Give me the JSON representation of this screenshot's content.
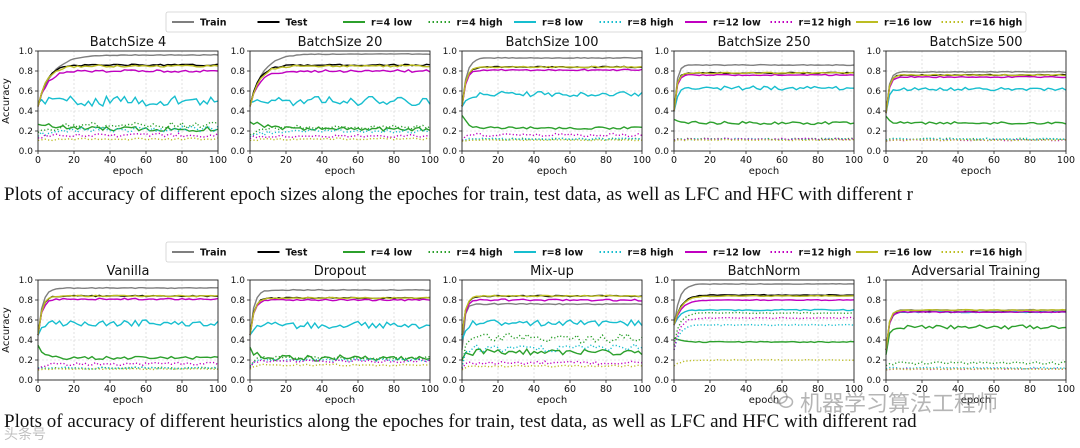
{
  "legend": [
    {
      "label": "Train",
      "color": "#7f7f7f",
      "style": "solid"
    },
    {
      "label": "Test",
      "color": "#000000",
      "style": "solid"
    },
    {
      "label": "r=4 low",
      "color": "#2ca02c",
      "style": "solid"
    },
    {
      "label": "r=4 high",
      "color": "#2ca02c",
      "style": "dotted"
    },
    {
      "label": "r=8 low",
      "color": "#17becf",
      "style": "solid"
    },
    {
      "label": "r=8 high",
      "color": "#17becf",
      "style": "dotted"
    },
    {
      "label": "r=12 low",
      "color": "#c000c0",
      "style": "solid"
    },
    {
      "label": "r=12 high",
      "color": "#c000c0",
      "style": "dotted"
    },
    {
      "label": "r=16 low",
      "color": "#bcbd22",
      "style": "solid"
    },
    {
      "label": "r=16 high",
      "color": "#bcbd22",
      "style": "dotted"
    }
  ],
  "axis": {
    "xlabel": "epoch",
    "ylabel": "Accuracy",
    "xticks": [
      0,
      20,
      40,
      60,
      80,
      100
    ],
    "yticks": [
      0.0,
      0.2,
      0.4,
      0.6,
      0.8,
      1.0
    ],
    "xlim": [
      0,
      100
    ],
    "ylim": [
      0,
      1
    ]
  },
  "captions": {
    "top": "Plots of accuracy of different epoch sizes along the epoches for train, test data, as well as LFC and HFC with different r",
    "bottom": "Plots of accuracy of different heuristics along the epoches for train, test data, as well as LFC and HFC with different rad"
  },
  "watermark": {
    "right": "机器学习算法工程师",
    "left": "头条号"
  },
  "chart_data": [
    {
      "type": "line",
      "title": "BatchSize 4",
      "grid": true,
      "series": [
        {
          "label_ref": "Train",
          "start": 0.45,
          "end": 0.96,
          "rate": 8,
          "noise": 0.004
        },
        {
          "label_ref": "Test",
          "start": 0.45,
          "end": 0.86,
          "rate": 5,
          "noise": 0.008
        },
        {
          "label_ref": "r=4 low",
          "start": 0.28,
          "end": 0.22,
          "rate": 10,
          "noise": 0.025
        },
        {
          "label_ref": "r=4 high",
          "start": 0.2,
          "end": 0.26,
          "rate": 10,
          "noise": 0.03
        },
        {
          "label_ref": "r=8 low",
          "start": 0.5,
          "end": 0.5,
          "rate": 5,
          "noise": 0.05
        },
        {
          "label_ref": "r=8 high",
          "start": 0.16,
          "end": 0.22,
          "rate": 10,
          "noise": 0.03
        },
        {
          "label_ref": "r=12 low",
          "start": 0.45,
          "end": 0.8,
          "rate": 5,
          "noise": 0.012
        },
        {
          "label_ref": "r=12 high",
          "start": 0.14,
          "end": 0.16,
          "rate": 10,
          "noise": 0.02
        },
        {
          "label_ref": "r=16 low",
          "start": 0.45,
          "end": 0.85,
          "rate": 5,
          "noise": 0.01
        },
        {
          "label_ref": "r=16 high",
          "start": 0.11,
          "end": 0.12,
          "rate": 10,
          "noise": 0.01
        }
      ]
    },
    {
      "type": "line",
      "title": "BatchSize 20",
      "grid": true,
      "series": [
        {
          "label_ref": "Train",
          "start": 0.45,
          "end": 0.97,
          "rate": 7,
          "noise": 0.004
        },
        {
          "label_ref": "Test",
          "start": 0.45,
          "end": 0.86,
          "rate": 5,
          "noise": 0.008
        },
        {
          "label_ref": "r=4 low",
          "start": 0.3,
          "end": 0.22,
          "rate": 10,
          "noise": 0.02
        },
        {
          "label_ref": "r=4 high",
          "start": 0.17,
          "end": 0.24,
          "rate": 10,
          "noise": 0.02
        },
        {
          "label_ref": "r=8 low",
          "start": 0.5,
          "end": 0.5,
          "rate": 5,
          "noise": 0.045
        },
        {
          "label_ref": "r=8 high",
          "start": 0.15,
          "end": 0.2,
          "rate": 10,
          "noise": 0.02
        },
        {
          "label_ref": "r=12 low",
          "start": 0.45,
          "end": 0.8,
          "rate": 5,
          "noise": 0.012
        },
        {
          "label_ref": "r=12 high",
          "start": 0.13,
          "end": 0.15,
          "rate": 10,
          "noise": 0.015
        },
        {
          "label_ref": "r=16 low",
          "start": 0.45,
          "end": 0.85,
          "rate": 5,
          "noise": 0.01
        },
        {
          "label_ref": "r=16 high",
          "start": 0.11,
          "end": 0.12,
          "rate": 10,
          "noise": 0.01
        }
      ]
    },
    {
      "type": "line",
      "title": "BatchSize 100",
      "grid": true,
      "series": [
        {
          "label_ref": "Train",
          "start": 0.45,
          "end": 0.93,
          "rate": 2.5,
          "noise": 0.004
        },
        {
          "label_ref": "Test",
          "start": 0.45,
          "end": 0.84,
          "rate": 2.2,
          "noise": 0.006
        },
        {
          "label_ref": "r=4 low",
          "start": 0.36,
          "end": 0.23,
          "rate": 3,
          "noise": 0.012
        },
        {
          "label_ref": "r=4 high",
          "start": 0.11,
          "end": 0.12,
          "rate": 3,
          "noise": 0.01
        },
        {
          "label_ref": "r=8 low",
          "start": 0.45,
          "end": 0.57,
          "rate": 2.5,
          "noise": 0.025
        },
        {
          "label_ref": "r=8 high",
          "start": 0.11,
          "end": 0.12,
          "rate": 3,
          "noise": 0.01
        },
        {
          "label_ref": "r=12 low",
          "start": 0.45,
          "end": 0.81,
          "rate": 2.2,
          "noise": 0.008
        },
        {
          "label_ref": "r=12 high",
          "start": 0.11,
          "end": 0.16,
          "rate": 2,
          "noise": 0.015
        },
        {
          "label_ref": "r=16 low",
          "start": 0.45,
          "end": 0.84,
          "rate": 2.2,
          "noise": 0.006
        },
        {
          "label_ref": "r=16 high",
          "start": 0.1,
          "end": 0.11,
          "rate": 3,
          "noise": 0.005
        }
      ]
    },
    {
      "type": "line",
      "title": "BatchSize 250",
      "grid": true,
      "series": [
        {
          "label_ref": "Train",
          "start": 0.4,
          "end": 0.86,
          "rate": 1.6,
          "noise": 0.004
        },
        {
          "label_ref": "Test",
          "start": 0.4,
          "end": 0.78,
          "rate": 1.5,
          "noise": 0.006
        },
        {
          "label_ref": "r=4 low",
          "start": 0.32,
          "end": 0.28,
          "rate": 2,
          "noise": 0.015
        },
        {
          "label_ref": "r=4 high",
          "start": 0.11,
          "end": 0.12,
          "rate": 2,
          "noise": 0.008
        },
        {
          "label_ref": "r=8 low",
          "start": 0.4,
          "end": 0.63,
          "rate": 1.6,
          "noise": 0.02
        },
        {
          "label_ref": "r=8 high",
          "start": 0.11,
          "end": 0.12,
          "rate": 2,
          "noise": 0.008
        },
        {
          "label_ref": "r=12 low",
          "start": 0.4,
          "end": 0.76,
          "rate": 1.5,
          "noise": 0.006
        },
        {
          "label_ref": "r=12 high",
          "start": 0.11,
          "end": 0.12,
          "rate": 2,
          "noise": 0.008
        },
        {
          "label_ref": "r=16 low",
          "start": 0.4,
          "end": 0.78,
          "rate": 1.5,
          "noise": 0.006
        },
        {
          "label_ref": "r=16 high",
          "start": 0.1,
          "end": 0.11,
          "rate": 2,
          "noise": 0.005
        }
      ]
    },
    {
      "type": "line",
      "title": "BatchSize 500",
      "grid": true,
      "series": [
        {
          "label_ref": "Train",
          "start": 0.38,
          "end": 0.79,
          "rate": 1.6,
          "noise": 0.004
        },
        {
          "label_ref": "Test",
          "start": 0.38,
          "end": 0.76,
          "rate": 1.6,
          "noise": 0.005
        },
        {
          "label_ref": "r=4 low",
          "start": 0.35,
          "end": 0.28,
          "rate": 2,
          "noise": 0.012
        },
        {
          "label_ref": "r=4 high",
          "start": 0.11,
          "end": 0.12,
          "rate": 2,
          "noise": 0.008
        },
        {
          "label_ref": "r=8 low",
          "start": 0.38,
          "end": 0.62,
          "rate": 1.6,
          "noise": 0.015
        },
        {
          "label_ref": "r=8 high",
          "start": 0.11,
          "end": 0.12,
          "rate": 2,
          "noise": 0.008
        },
        {
          "label_ref": "r=12 low",
          "start": 0.38,
          "end": 0.74,
          "rate": 1.6,
          "noise": 0.005
        },
        {
          "label_ref": "r=12 high",
          "start": 0.1,
          "end": 0.11,
          "rate": 2,
          "noise": 0.006
        },
        {
          "label_ref": "r=16 low",
          "start": 0.38,
          "end": 0.76,
          "rate": 1.6,
          "noise": 0.005
        },
        {
          "label_ref": "r=16 high",
          "start": 0.1,
          "end": 0.11,
          "rate": 2,
          "noise": 0.005
        }
      ]
    },
    {
      "type": "line",
      "title": "Vanilla",
      "grid": true,
      "series": [
        {
          "label_ref": "Train",
          "start": 0.45,
          "end": 0.92,
          "rate": 2.5,
          "noise": 0.004
        },
        {
          "label_ref": "Test",
          "start": 0.45,
          "end": 0.84,
          "rate": 2.2,
          "noise": 0.006
        },
        {
          "label_ref": "r=4 low",
          "start": 0.35,
          "end": 0.22,
          "rate": 3,
          "noise": 0.015
        },
        {
          "label_ref": "r=4 high",
          "start": 0.12,
          "end": 0.12,
          "rate": 3,
          "noise": 0.01
        },
        {
          "label_ref": "r=8 low",
          "start": 0.45,
          "end": 0.57,
          "rate": 2.5,
          "noise": 0.03
        },
        {
          "label_ref": "r=8 high",
          "start": 0.12,
          "end": 0.12,
          "rate": 3,
          "noise": 0.01
        },
        {
          "label_ref": "r=12 low",
          "start": 0.45,
          "end": 0.81,
          "rate": 2.2,
          "noise": 0.008
        },
        {
          "label_ref": "r=12 high",
          "start": 0.11,
          "end": 0.16,
          "rate": 2,
          "noise": 0.015
        },
        {
          "label_ref": "r=16 low",
          "start": 0.45,
          "end": 0.84,
          "rate": 2.2,
          "noise": 0.006
        },
        {
          "label_ref": "r=16 high",
          "start": 0.1,
          "end": 0.11,
          "rate": 3,
          "noise": 0.005
        }
      ]
    },
    {
      "type": "line",
      "title": "Dropout",
      "grid": true,
      "series": [
        {
          "label_ref": "Train",
          "start": 0.45,
          "end": 0.9,
          "rate": 2.2,
          "noise": 0.004
        },
        {
          "label_ref": "Test",
          "start": 0.45,
          "end": 0.82,
          "rate": 2.2,
          "noise": 0.006
        },
        {
          "label_ref": "r=4 low",
          "start": 0.33,
          "end": 0.22,
          "rate": 3,
          "noise": 0.03
        },
        {
          "label_ref": "r=4 high",
          "start": 0.14,
          "end": 0.22,
          "rate": 2,
          "noise": 0.015
        },
        {
          "label_ref": "r=8 low",
          "start": 0.45,
          "end": 0.55,
          "rate": 2.5,
          "noise": 0.035
        },
        {
          "label_ref": "r=8 high",
          "start": 0.13,
          "end": 0.2,
          "rate": 2,
          "noise": 0.015
        },
        {
          "label_ref": "r=12 low",
          "start": 0.45,
          "end": 0.8,
          "rate": 2.2,
          "noise": 0.008
        },
        {
          "label_ref": "r=12 high",
          "start": 0.12,
          "end": 0.19,
          "rate": 2,
          "noise": 0.015
        },
        {
          "label_ref": "r=16 low",
          "start": 0.45,
          "end": 0.82,
          "rate": 2.2,
          "noise": 0.006
        },
        {
          "label_ref": "r=16 high",
          "start": 0.11,
          "end": 0.15,
          "rate": 2,
          "noise": 0.01
        }
      ]
    },
    {
      "type": "line",
      "title": "Mix-up",
      "grid": true,
      "series": [
        {
          "label_ref": "Train",
          "start": 0.3,
          "end": 0.76,
          "rate": 1.3,
          "noise": 0.006
        },
        {
          "label_ref": "Test",
          "start": 0.45,
          "end": 0.84,
          "rate": 2,
          "noise": 0.006
        },
        {
          "label_ref": "r=4 low",
          "start": 0.2,
          "end": 0.28,
          "rate": 2,
          "noise": 0.03
        },
        {
          "label_ref": "r=4 high",
          "start": 0.12,
          "end": 0.42,
          "rate": 0.8,
          "noise": 0.05
        },
        {
          "label_ref": "r=8 low",
          "start": 0.4,
          "end": 0.57,
          "rate": 2,
          "noise": 0.03
        },
        {
          "label_ref": "r=8 high",
          "start": 0.12,
          "end": 0.32,
          "rate": 1,
          "noise": 0.04
        },
        {
          "label_ref": "r=12 low",
          "start": 0.45,
          "end": 0.8,
          "rate": 2,
          "noise": 0.01
        },
        {
          "label_ref": "r=12 high",
          "start": 0.11,
          "end": 0.17,
          "rate": 1.5,
          "noise": 0.02
        },
        {
          "label_ref": "r=16 low",
          "start": 0.45,
          "end": 0.84,
          "rate": 2,
          "noise": 0.007
        },
        {
          "label_ref": "r=16 high",
          "start": 0.1,
          "end": 0.14,
          "rate": 1.5,
          "noise": 0.01
        }
      ]
    },
    {
      "type": "line",
      "title": "BatchNorm",
      "grid": true,
      "series": [
        {
          "label_ref": "Train",
          "start": 0.55,
          "end": 0.96,
          "rate": 3,
          "noise": 0.003
        },
        {
          "label_ref": "Test",
          "start": 0.55,
          "end": 0.85,
          "rate": 4,
          "noise": 0.004
        },
        {
          "label_ref": "r=4 low",
          "start": 0.42,
          "end": 0.38,
          "rate": 4,
          "noise": 0.005
        },
        {
          "label_ref": "r=4 high",
          "start": 0.35,
          "end": 0.67,
          "rate": 3,
          "noise": 0.006
        },
        {
          "label_ref": "r=8 low",
          "start": 0.55,
          "end": 0.7,
          "rate": 3,
          "noise": 0.006
        },
        {
          "label_ref": "r=8 high",
          "start": 0.3,
          "end": 0.55,
          "rate": 3,
          "noise": 0.006
        },
        {
          "label_ref": "r=12 low",
          "start": 0.55,
          "end": 0.8,
          "rate": 4,
          "noise": 0.004
        },
        {
          "label_ref": "r=12 high",
          "start": 0.3,
          "end": 0.62,
          "rate": 3,
          "noise": 0.006
        },
        {
          "label_ref": "r=16 low",
          "start": 0.55,
          "end": 0.84,
          "rate": 4,
          "noise": 0.004
        },
        {
          "label_ref": "r=16 high",
          "start": 0.14,
          "end": 0.2,
          "rate": 4,
          "noise": 0.004
        }
      ]
    },
    {
      "type": "line",
      "title": "Adversarial Training",
      "grid": true,
      "series": [
        {
          "label_ref": "Train",
          "start": 0.3,
          "end": 0.7,
          "rate": 1.6,
          "noise": 0.004
        },
        {
          "label_ref": "Test",
          "start": 0.3,
          "end": 0.68,
          "rate": 1.6,
          "noise": 0.005
        },
        {
          "label_ref": "r=4 low",
          "start": 0.25,
          "end": 0.53,
          "rate": 1.3,
          "noise": 0.02
        },
        {
          "label_ref": "r=4 high",
          "start": 0.14,
          "end": 0.17,
          "rate": 2,
          "noise": 0.015
        },
        {
          "label_ref": "r=8 low",
          "start": 0.3,
          "end": 0.68,
          "rate": 1.6,
          "noise": 0.006
        },
        {
          "label_ref": "r=8 high",
          "start": 0.11,
          "end": 0.12,
          "rate": 2,
          "noise": 0.008
        },
        {
          "label_ref": "r=12 low",
          "start": 0.3,
          "end": 0.68,
          "rate": 1.6,
          "noise": 0.005
        },
        {
          "label_ref": "r=12 high",
          "start": 0.1,
          "end": 0.11,
          "rate": 2,
          "noise": 0.005
        },
        {
          "label_ref": "r=16 low",
          "start": 0.3,
          "end": 0.7,
          "rate": 1.6,
          "noise": 0.005
        },
        {
          "label_ref": "r=16 high",
          "start": 0.1,
          "end": 0.11,
          "rate": 2,
          "noise": 0.005
        }
      ]
    }
  ]
}
